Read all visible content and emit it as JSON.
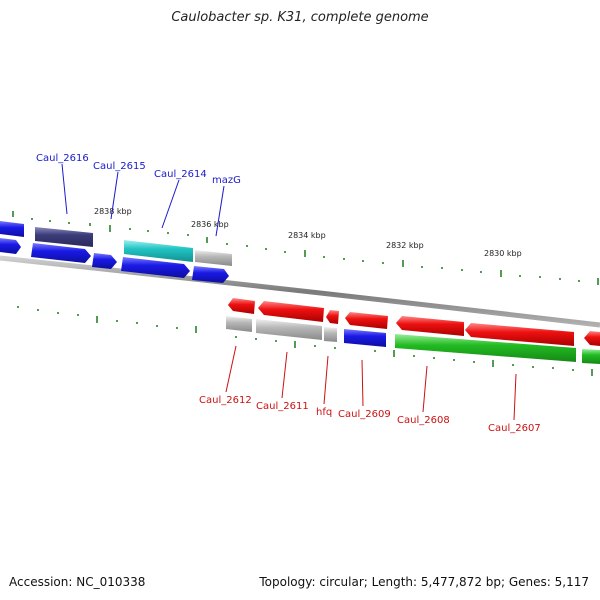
{
  "title": "Caulobacter sp. K31, complete genome",
  "footer": {
    "accession": "Accession: NC_010338",
    "summary": "Topology: circular; Length: 5,477,872 bp; Genes: 5,117"
  },
  "colors": {
    "label_upper": "#1a1acc",
    "label_lower": "#cc1111",
    "tick": "#1a7a1a",
    "backbone": "#888888"
  },
  "kbp_labels": [
    "2838 kbp",
    "2836 kbp",
    "2834 kbp",
    "2832 kbp",
    "2830 kbp"
  ],
  "upper_genes": [
    {
      "name": "Caul_2616",
      "color": "#3b3b7a"
    },
    {
      "name": "Caul_2615",
      "color": "#1a1ae6"
    },
    {
      "name": "Caul_2614",
      "color": "#22c4c4"
    },
    {
      "name": "mazG",
      "color": "#b0b0b0"
    }
  ],
  "lower_genes": [
    {
      "name": "Caul_2612",
      "color": "#b8b8b8"
    },
    {
      "name": "Caul_2611",
      "color": "#b8b8b8"
    },
    {
      "name": "hfq",
      "color": "#b8b8b8"
    },
    {
      "name": "Caul_2609",
      "color": "#1a1ae6"
    },
    {
      "name": "Caul_2608",
      "color": "#22bb22"
    },
    {
      "name": "Caul_2607",
      "color": "#22bb22"
    }
  ]
}
